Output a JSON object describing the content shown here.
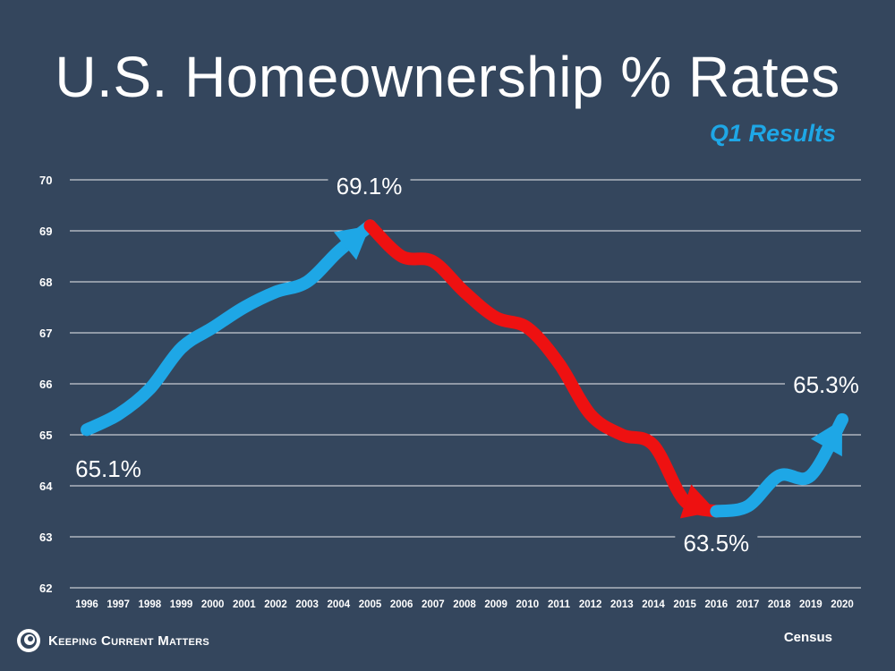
{
  "chart_data": {
    "type": "line",
    "title": "U.S. Homeownership % Rates",
    "subtitle": "Q1 Results",
    "x": [
      "1996",
      "1997",
      "1998",
      "1999",
      "2000",
      "2001",
      "2002",
      "2003",
      "2004",
      "2005",
      "2006",
      "2007",
      "2008",
      "2009",
      "2010",
      "2011",
      "2012",
      "2013",
      "2014",
      "2015",
      "2016",
      "2017",
      "2018",
      "2019",
      "2020"
    ],
    "series": [
      {
        "values": [
          65.1,
          65.4,
          65.9,
          66.7,
          67.1,
          67.5,
          67.8,
          68.0,
          68.6,
          69.1,
          68.5,
          68.4,
          67.8,
          67.3,
          67.1,
          66.4,
          65.4,
          65.0,
          64.8,
          63.7,
          63.5,
          63.6,
          64.2,
          64.2,
          65.3
        ]
      }
    ],
    "segments": [
      {
        "from": "1996",
        "to": "2005",
        "color": "#1ea7e6"
      },
      {
        "from": "2005",
        "to": "2016",
        "color": "#ee1111"
      },
      {
        "from": "2016",
        "to": "2020",
        "color": "#1ea7e6"
      }
    ],
    "ylim": [
      62,
      70
    ],
    "yticks": [
      "62",
      "63",
      "64",
      "65",
      "66",
      "67",
      "68",
      "69",
      "70"
    ],
    "grid": true,
    "annotations": [
      {
        "text": "65.1%",
        "year": "1996"
      },
      {
        "text": "69.1%",
        "year": "2005"
      },
      {
        "text": "63.5%",
        "year": "2016"
      },
      {
        "text": "65.3%",
        "year": "2020"
      }
    ]
  },
  "footer": {
    "brand": "Keeping Current Matters",
    "source": "Census"
  },
  "colors": {
    "background": "#34465d",
    "accent_blue": "#1ea7e6",
    "accent_red": "#ee1111",
    "grid": "#ffffff"
  }
}
